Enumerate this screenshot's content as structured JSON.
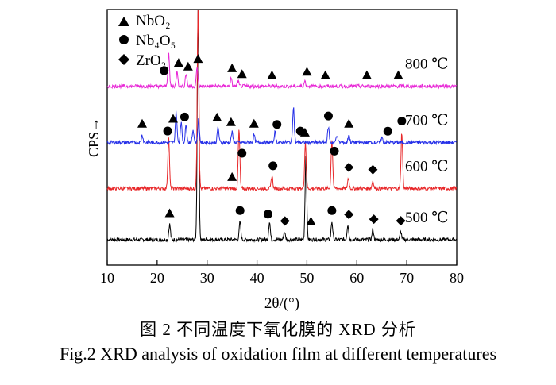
{
  "chart_data": {
    "type": "line",
    "title": "",
    "xlabel": "2θ/(°)",
    "ylabel": "CPS→",
    "xlim": [
      10,
      80
    ],
    "x_ticks": [
      10,
      20,
      30,
      40,
      50,
      60,
      70,
      80
    ],
    "y_ticks": [],
    "grid": false,
    "legend": {
      "placement": "top-left",
      "entries": [
        {
          "symbol": "triangle",
          "label": "NbO₂"
        },
        {
          "symbol": "circle",
          "label": "Nb₄O₅"
        },
        {
          "symbol": "diamond",
          "label": "ZrO₂"
        }
      ]
    },
    "series": [
      {
        "name": "500 ℃",
        "color": "#000000",
        "baseline": 0.1,
        "peaks": [
          [
            22.5,
            0.06
          ],
          [
            28.2,
            0.92
          ],
          [
            36.6,
            0.07
          ],
          [
            42.5,
            0.07
          ],
          [
            45.5,
            0.03
          ],
          [
            49.8,
            0.33
          ],
          [
            55.0,
            0.07
          ],
          [
            58.2,
            0.06
          ],
          [
            63.2,
            0.04
          ],
          [
            68.8,
            0.03
          ]
        ],
        "markers": [
          {
            "symbol": "triangle",
            "x": 22.5
          },
          {
            "symbol": "circle",
            "x": 36.6
          },
          {
            "symbol": "circle",
            "x": 42.2
          },
          {
            "symbol": "diamond",
            "x": 45.6
          },
          {
            "symbol": "triangle",
            "x": 50.8
          },
          {
            "symbol": "circle",
            "x": 55.0
          },
          {
            "symbol": "diamond",
            "x": 58.4
          },
          {
            "symbol": "diamond",
            "x": 63.4
          },
          {
            "symbol": "diamond",
            "x": 68.8
          }
        ]
      },
      {
        "name": "600 ℃",
        "color": "#e8282a",
        "baseline": 0.3,
        "peaks": [
          [
            22.3,
            0.2
          ],
          [
            28.2,
            0.74
          ],
          [
            36.4,
            0.23
          ],
          [
            43.0,
            0.05
          ],
          [
            49.7,
            0.18
          ],
          [
            55.0,
            0.19
          ],
          [
            58.3,
            0.04
          ],
          [
            63.2,
            0.03
          ],
          [
            69.0,
            0.22
          ]
        ],
        "markers": [
          {
            "symbol": "circle",
            "x": 22.1
          },
          {
            "symbol": "triangle",
            "x": 35.0
          },
          {
            "symbol": "circle",
            "x": 37.0
          },
          {
            "symbol": "circle",
            "x": 43.2
          },
          {
            "symbol": "triangle",
            "x": 49.6
          },
          {
            "symbol": "circle",
            "x": 55.5
          },
          {
            "symbol": "diamond",
            "x": 58.4
          },
          {
            "symbol": "diamond",
            "x": 63.2
          },
          {
            "symbol": "circle",
            "x": 69.0
          }
        ]
      },
      {
        "name": "700 ℃",
        "color": "#2630e8",
        "baseline": 0.48,
        "peaks": [
          [
            17.0,
            0.03
          ],
          [
            23.8,
            0.12
          ],
          [
            24.8,
            0.08
          ],
          [
            25.8,
            0.07
          ],
          [
            27.2,
            0.05
          ],
          [
            28.3,
            0.09
          ],
          [
            32.2,
            0.06
          ],
          [
            35.0,
            0.04
          ],
          [
            39.4,
            0.03
          ],
          [
            43.6,
            0.04
          ],
          [
            47.3,
            0.14
          ],
          [
            54.3,
            0.06
          ],
          [
            56.0,
            0.03
          ],
          [
            58.4,
            0.03
          ],
          [
            65.0,
            0.02
          ]
        ],
        "markers": [
          {
            "symbol": "triangle",
            "x": 17.0
          },
          {
            "symbol": "triangle",
            "x": 23.2
          },
          {
            "symbol": "circle",
            "x": 25.5
          },
          {
            "symbol": "triangle",
            "x": 32.0
          },
          {
            "symbol": "triangle",
            "x": 34.8
          },
          {
            "symbol": "triangle",
            "x": 39.4
          },
          {
            "symbol": "circle",
            "x": 44.0
          },
          {
            "symbol": "circle",
            "x": 48.7
          },
          {
            "symbol": "circle",
            "x": 54.3
          },
          {
            "symbol": "triangle",
            "x": 58.4
          },
          {
            "symbol": "circle",
            "x": 66.2
          }
        ]
      },
      {
        "name": "800 ℃",
        "color": "#e827d6",
        "baseline": 0.7,
        "peaks": [
          [
            22.3,
            0.13
          ],
          [
            24.0,
            0.06
          ],
          [
            25.8,
            0.05
          ],
          [
            28.0,
            0.07
          ],
          [
            34.8,
            0.03
          ],
          [
            36.2,
            0.02
          ],
          [
            49.6,
            0.02
          ]
        ],
        "markers": [
          {
            "symbol": "circle",
            "x": 21.4
          },
          {
            "symbol": "triangle",
            "x": 24.3
          },
          {
            "symbol": "triangle",
            "x": 26.2
          },
          {
            "symbol": "triangle",
            "x": 28.2
          },
          {
            "symbol": "triangle",
            "x": 35.0
          },
          {
            "symbol": "triangle",
            "x": 37.0
          },
          {
            "symbol": "triangle",
            "x": 43.0
          },
          {
            "symbol": "triangle",
            "x": 50.0
          },
          {
            "symbol": "triangle",
            "x": 53.7
          },
          {
            "symbol": "triangle",
            "x": 62.0
          },
          {
            "symbol": "triangle",
            "x": 68.3
          }
        ]
      }
    ]
  },
  "caption": {
    "chinese": "图 2   不同温度下氧化膜的 XRD 分析",
    "english": "Fig.2   XRD analysis of oxidation film at different temperatures"
  }
}
